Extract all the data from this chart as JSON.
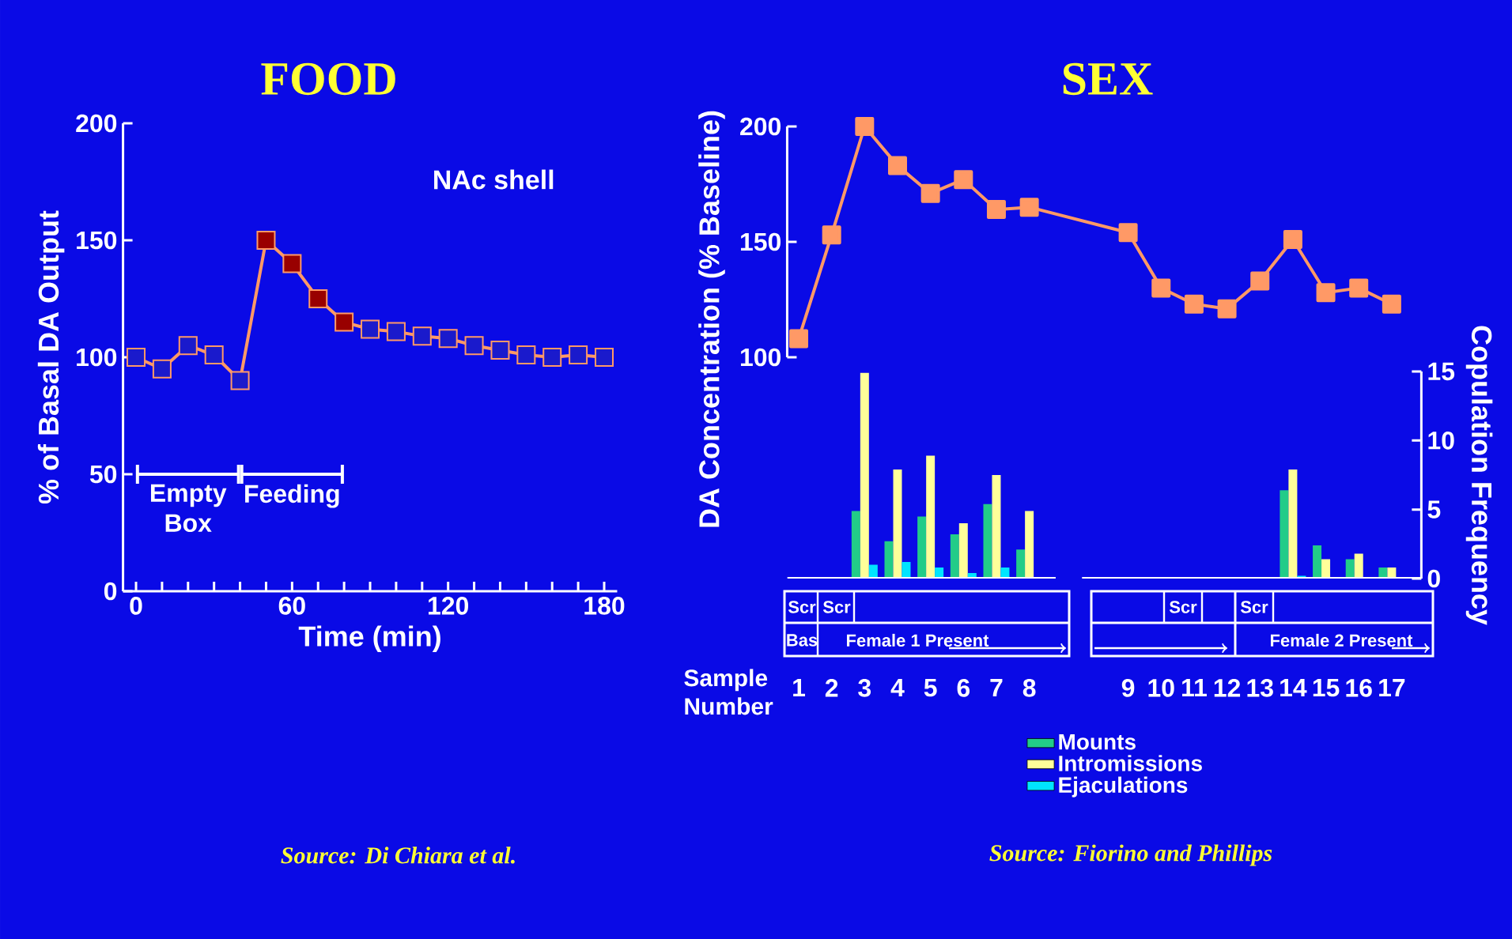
{
  "chart_data": [
    {
      "type": "line",
      "title": "FOOD",
      "xlabel": "Time (min)",
      "ylabel": "% of Basal DA Output",
      "x": [
        0,
        10,
        20,
        30,
        40,
        50,
        60,
        70,
        80,
        90,
        100,
        110,
        120,
        130,
        140,
        150,
        160,
        170,
        180
      ],
      "values": [
        100,
        95,
        105,
        101,
        90,
        150,
        140,
        125,
        115,
        112,
        111,
        109,
        108,
        105,
        103,
        101,
        100,
        101,
        100
      ],
      "color": "#ff9966",
      "colors": [
        "#1a1acc",
        "#1a1acc",
        "#1a1acc",
        "#1a1acc",
        "#1a1acc",
        "#990000",
        "#990000",
        "#990000",
        "#990000",
        "#1a1acc",
        "#1a1acc",
        "#1a1acc",
        "#1a1acc",
        "#1a1acc",
        "#1a1acc",
        "#1a1acc",
        "#1a1acc",
        "#1a1acc",
        "#1a1acc"
      ],
      "marker": "square",
      "xlim": [
        -5,
        185
      ],
      "ylim": [
        0,
        200
      ],
      "xticks": [
        0,
        {
          "value": 10,
          "label": null
        },
        {
          "value": 20,
          "label": null
        },
        {
          "value": 30,
          "label": null
        },
        {
          "value": 40,
          "label": null
        },
        {
          "value": 50,
          "label": null
        },
        60,
        {
          "value": 70,
          "label": null
        },
        {
          "value": 80,
          "label": null
        },
        {
          "value": 90,
          "label": null
        },
        {
          "value": 100,
          "label": null
        },
        {
          "value": 110,
          "label": null
        },
        120,
        {
          "value": 130,
          "label": null
        },
        {
          "value": 140,
          "label": null
        },
        {
          "value": 150,
          "label": null
        },
        {
          "value": 160,
          "label": null
        },
        {
          "value": 170,
          "label": null
        },
        180
      ],
      "yticks": [
        0,
        50,
        100,
        150,
        200
      ],
      "annotations": [
        "NAc shell",
        "Empty Box",
        "Feeding",
        "Source: Di Chiara et al."
      ]
    },
    {
      "type": "line",
      "title": "SEX",
      "ylabel": "DA Concentration (% Baseline)",
      "categories": [
        "1",
        "2",
        "3",
        "4",
        "5",
        "6",
        "7",
        "8",
        null,
        null,
        "9",
        "10",
        "11",
        "12",
        "13",
        "14",
        "15",
        "16",
        "17"
      ],
      "values": [
        108,
        153,
        200,
        183,
        171,
        177,
        164,
        165,
        null,
        null,
        154,
        130,
        123,
        121,
        133,
        151,
        128,
        130,
        123
      ],
      "color": "#ff9966",
      "marker": "square",
      "ylim": [
        100,
        200
      ],
      "yticks": [
        100,
        150,
        200
      ],
      "tick_labels": "y"
    },
    {
      "type": "bar",
      "xlabel": "Sample Number",
      "ylabel": "Copulation Frequency",
      "categories": [
        "1",
        "2",
        "3",
        "4",
        "5",
        "6",
        "7",
        "8",
        null,
        null,
        "9",
        "10",
        "11",
        "12",
        "13",
        "14",
        "15",
        "16",
        "17"
      ],
      "series": [
        {
          "name": "Mounts",
          "color": "#22cc88",
          "values": [
            null,
            null,
            4.9,
            2.7,
            4.5,
            3.2,
            5.4,
            2.1,
            null,
            null,
            null,
            null,
            null,
            null,
            null,
            6.4,
            2.4,
            1.4,
            0.8
          ]
        },
        {
          "name": "Intromissions",
          "color": "#ffff99",
          "values": [
            null,
            null,
            14.9,
            7.9,
            8.9,
            4.0,
            7.5,
            4.9,
            null,
            null,
            null,
            null,
            null,
            null,
            null,
            7.9,
            1.4,
            1.8,
            0.8
          ]
        },
        {
          "name": "Ejaculations",
          "color": "#00e5ff",
          "values": [
            null,
            null,
            1.0,
            1.2,
            0.8,
            0.4,
            0.8,
            null,
            null,
            null,
            null,
            null,
            null,
            null,
            null,
            0.2,
            null,
            null,
            null
          ]
        }
      ],
      "ylim": [
        0,
        15
      ],
      "yticks": [
        0,
        5,
        10,
        15
      ],
      "legend": "bottom",
      "annotations": [
        "Scr",
        "Scr",
        "Bas",
        "Female 1 Present",
        "Scr",
        "Scr",
        "Female 2 Present",
        "Source: Fiorino and Phillips"
      ]
    }
  ]
}
